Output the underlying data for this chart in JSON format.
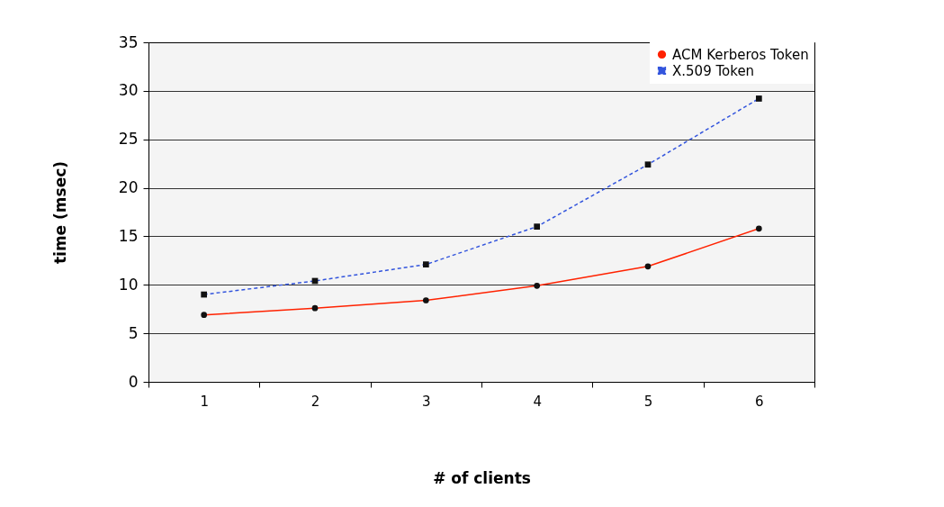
{
  "chart_data": {
    "type": "line",
    "xlabel": "# of clients",
    "ylabel": "time (msec)",
    "categories": [
      "1",
      "2",
      "3",
      "4",
      "5",
      "6"
    ],
    "series": [
      {
        "name": "ACM Kerberos Token",
        "color": "#ff2200",
        "marker": "circle",
        "line_style": "solid",
        "values": [
          6.9,
          7.6,
          8.4,
          9.9,
          11.9,
          15.8
        ]
      },
      {
        "name": "X.509 Token",
        "color": "#3355dd",
        "marker": "square",
        "line_style": "dashed",
        "values": [
          9.0,
          10.4,
          12.1,
          16.0,
          22.4,
          29.2
        ]
      }
    ],
    "ylim": [
      0,
      35
    ],
    "yticks": [
      0,
      5,
      10,
      15,
      20,
      25,
      30,
      35
    ],
    "grid": "y",
    "legend": "top right"
  }
}
